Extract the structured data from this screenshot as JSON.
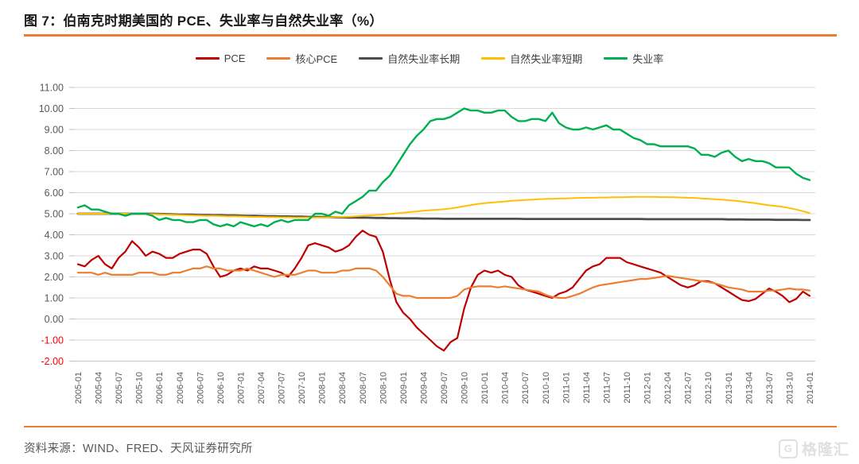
{
  "figure": {
    "title": "图 7：伯南克时期美国的 PCE、失业率与自然失业率（%）"
  },
  "source": {
    "label": "资料来源：WIND、FRED、天风证券研究所"
  },
  "watermark": {
    "icon": "G",
    "text": "格隆汇"
  },
  "colors": {
    "accent_rule": "#ED7D31",
    "grid": "#d9d9d9",
    "axis_text": "#595959",
    "negative_tick": "#FF0000"
  },
  "chart_data": {
    "type": "line",
    "title": "伯南克时期美国的 PCE、失业率与自然失业率（%）",
    "xlabel": "",
    "ylabel": "",
    "ylim": [
      -2,
      11
    ],
    "grid": "horizontal",
    "legend_position": "top-center",
    "x_start": "2005-01",
    "x_end": "2014-01",
    "x_frequency": "monthly",
    "y_tick_labels": [
      "11.00",
      "10.00",
      "9.00",
      "8.00",
      "7.00",
      "6.00",
      "5.00",
      "4.00",
      "3.00",
      "2.00",
      "1.00",
      "0.00",
      "-1.00",
      "-2.00"
    ],
    "x_tick_labels": [
      "2005-01",
      "2005-04",
      "2005-07",
      "2005-10",
      "2006-01",
      "2006-04",
      "2006-07",
      "2006-10",
      "2007-01",
      "2007-04",
      "2007-07",
      "2007-10",
      "2008-01",
      "2008-04",
      "2008-07",
      "2008-10",
      "2009-01",
      "2009-04",
      "2009-07",
      "2009-10",
      "2010-01",
      "2010-04",
      "2010-07",
      "2010-10",
      "2011-01",
      "2011-04",
      "2011-07",
      "2011-10",
      "2012-01",
      "2012-04",
      "2012-07",
      "2012-10",
      "2013-01",
      "2013-04",
      "2013-07",
      "2013-10",
      "2014-01"
    ],
    "series": [
      {
        "name": "PCE",
        "color": "#C00000",
        "width": 2.2,
        "values": [
          2.6,
          2.5,
          2.8,
          3.0,
          2.6,
          2.4,
          2.9,
          3.2,
          3.7,
          3.4,
          3.0,
          3.2,
          3.1,
          2.9,
          2.9,
          3.1,
          3.2,
          3.3,
          3.3,
          3.1,
          2.5,
          2.0,
          2.1,
          2.3,
          2.4,
          2.3,
          2.5,
          2.4,
          2.4,
          2.3,
          2.2,
          2.0,
          2.4,
          2.9,
          3.5,
          3.6,
          3.5,
          3.4,
          3.2,
          3.3,
          3.5,
          3.9,
          4.2,
          4.0,
          3.9,
          3.2,
          1.9,
          0.8,
          0.3,
          0.0,
          -0.4,
          -0.7,
          -1.0,
          -1.3,
          -1.5,
          -1.1,
          -0.9,
          0.5,
          1.5,
          2.1,
          2.3,
          2.2,
          2.3,
          2.1,
          2.0,
          1.6,
          1.4,
          1.3,
          1.2,
          1.1,
          1.0,
          1.2,
          1.3,
          1.5,
          1.9,
          2.3,
          2.5,
          2.6,
          2.9,
          2.9,
          2.9,
          2.7,
          2.6,
          2.5,
          2.4,
          2.3,
          2.2,
          2.0,
          1.8,
          1.6,
          1.5,
          1.6,
          1.8,
          1.8,
          1.7,
          1.5,
          1.3,
          1.1,
          0.9,
          0.85,
          0.95,
          1.2,
          1.45,
          1.3,
          1.1,
          0.8,
          0.95,
          1.3,
          1.1
        ]
      },
      {
        "name": "核心PCE",
        "color": "#ED7D31",
        "width": 2.2,
        "values": [
          2.2,
          2.2,
          2.2,
          2.1,
          2.2,
          2.1,
          2.1,
          2.1,
          2.1,
          2.2,
          2.2,
          2.2,
          2.1,
          2.1,
          2.2,
          2.2,
          2.3,
          2.4,
          2.4,
          2.5,
          2.4,
          2.4,
          2.3,
          2.3,
          2.3,
          2.4,
          2.3,
          2.2,
          2.1,
          2.0,
          2.1,
          2.1,
          2.1,
          2.2,
          2.3,
          2.3,
          2.2,
          2.2,
          2.2,
          2.3,
          2.3,
          2.4,
          2.4,
          2.4,
          2.3,
          2.0,
          1.6,
          1.2,
          1.1,
          1.1,
          1.0,
          1.0,
          1.0,
          1.0,
          1.0,
          1.0,
          1.1,
          1.4,
          1.5,
          1.55,
          1.55,
          1.55,
          1.5,
          1.55,
          1.5,
          1.45,
          1.4,
          1.35,
          1.3,
          1.15,
          1.05,
          1.0,
          1.0,
          1.1,
          1.2,
          1.35,
          1.5,
          1.6,
          1.65,
          1.7,
          1.75,
          1.8,
          1.85,
          1.9,
          1.9,
          1.95,
          2.0,
          2.05,
          2.0,
          1.95,
          1.9,
          1.85,
          1.8,
          1.75,
          1.7,
          1.6,
          1.5,
          1.45,
          1.4,
          1.3,
          1.3,
          1.3,
          1.35,
          1.35,
          1.4,
          1.45,
          1.4,
          1.4,
          1.35
        ]
      },
      {
        "name": "自然失业率长期",
        "color": "#4d4d4d",
        "width": 2.8,
        "values": [
          5.0,
          5.0,
          5.0,
          5.0,
          5.0,
          5.0,
          5.0,
          5.0,
          5.0,
          5.0,
          5.0,
          5.0,
          4.99,
          4.98,
          4.97,
          4.96,
          4.96,
          4.95,
          4.94,
          4.94,
          4.93,
          4.93,
          4.92,
          4.92,
          4.91,
          4.9,
          4.9,
          4.89,
          4.88,
          4.88,
          4.87,
          4.87,
          4.86,
          4.86,
          4.85,
          4.85,
          4.84,
          4.84,
          4.83,
          4.83,
          4.82,
          4.82,
          4.81,
          4.81,
          4.8,
          4.8,
          4.79,
          4.79,
          4.78,
          4.78,
          4.78,
          4.77,
          4.77,
          4.77,
          4.76,
          4.76,
          4.76,
          4.76,
          4.76,
          4.76,
          4.76,
          4.76,
          4.76,
          4.76,
          4.76,
          4.76,
          4.75,
          4.75,
          4.75,
          4.75,
          4.75,
          4.75,
          4.75,
          4.75,
          4.75,
          4.75,
          4.75,
          4.75,
          4.75,
          4.75,
          4.75,
          4.75,
          4.75,
          4.75,
          4.74,
          4.74,
          4.74,
          4.74,
          4.74,
          4.74,
          4.74,
          4.74,
          4.74,
          4.74,
          4.74,
          4.74,
          4.73,
          4.73,
          4.73,
          4.72,
          4.72,
          4.72,
          4.72,
          4.71,
          4.71,
          4.71,
          4.71,
          4.7,
          4.7
        ]
      },
      {
        "name": "自然失业率短期",
        "color": "#FFC000",
        "width": 2.0,
        "values": [
          5.0,
          5.0,
          5.0,
          5.0,
          5.0,
          5.0,
          5.0,
          5.0,
          4.99,
          4.99,
          4.98,
          4.98,
          4.97,
          4.96,
          4.95,
          4.94,
          4.93,
          4.92,
          4.91,
          4.9,
          4.9,
          4.89,
          4.88,
          4.88,
          4.87,
          4.86,
          4.85,
          4.85,
          4.84,
          4.84,
          4.83,
          4.83,
          4.82,
          4.82,
          4.82,
          4.82,
          4.82,
          4.83,
          4.84,
          4.85,
          4.86,
          4.88,
          4.9,
          4.92,
          4.94,
          4.96,
          4.99,
          5.02,
          5.05,
          5.08,
          5.11,
          5.14,
          5.17,
          5.19,
          5.21,
          5.25,
          5.3,
          5.36,
          5.41,
          5.46,
          5.5,
          5.53,
          5.56,
          5.58,
          5.61,
          5.63,
          5.65,
          5.67,
          5.69,
          5.7,
          5.71,
          5.72,
          5.73,
          5.74,
          5.75,
          5.76,
          5.76,
          5.77,
          5.77,
          5.78,
          5.78,
          5.79,
          5.8,
          5.8,
          5.8,
          5.8,
          5.79,
          5.79,
          5.78,
          5.77,
          5.76,
          5.75,
          5.73,
          5.71,
          5.69,
          5.67,
          5.64,
          5.61,
          5.58,
          5.54,
          5.5,
          5.45,
          5.4,
          5.37,
          5.33,
          5.27,
          5.2,
          5.12,
          5.03
        ]
      },
      {
        "name": "失业率",
        "color": "#00B050",
        "width": 2.4,
        "values": [
          5.3,
          5.4,
          5.2,
          5.2,
          5.1,
          5.0,
          5.0,
          4.9,
          5.0,
          5.0,
          5.0,
          4.9,
          4.7,
          4.8,
          4.7,
          4.7,
          4.6,
          4.6,
          4.7,
          4.7,
          4.5,
          4.4,
          4.5,
          4.4,
          4.6,
          4.5,
          4.4,
          4.5,
          4.4,
          4.6,
          4.7,
          4.6,
          4.7,
          4.7,
          4.7,
          5.0,
          5.0,
          4.9,
          5.1,
          5.0,
          5.4,
          5.6,
          5.8,
          6.1,
          6.1,
          6.5,
          6.8,
          7.3,
          7.8,
          8.3,
          8.7,
          9.0,
          9.4,
          9.5,
          9.5,
          9.6,
          9.8,
          10.0,
          9.9,
          9.9,
          9.8,
          9.8,
          9.9,
          9.9,
          9.6,
          9.4,
          9.4,
          9.5,
          9.5,
          9.4,
          9.8,
          9.3,
          9.1,
          9.0,
          9.0,
          9.1,
          9.0,
          9.1,
          9.2,
          9.0,
          9.0,
          8.8,
          8.6,
          8.5,
          8.3,
          8.3,
          8.2,
          8.2,
          8.2,
          8.2,
          8.2,
          8.1,
          7.8,
          7.8,
          7.7,
          7.9,
          8.0,
          7.7,
          7.5,
          7.6,
          7.5,
          7.5,
          7.4,
          7.2,
          7.2,
          7.2,
          6.9,
          6.7,
          6.6
        ]
      }
    ]
  }
}
